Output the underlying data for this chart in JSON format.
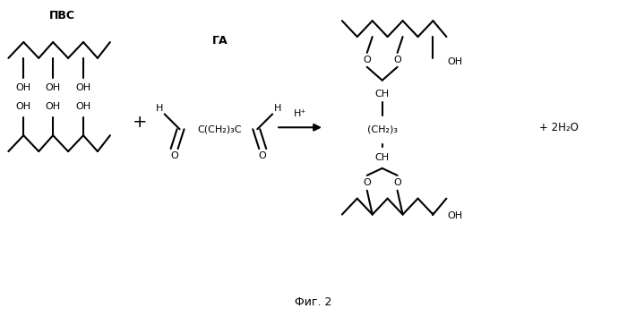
{
  "title": "",
  "fig_label": "Фиг. 2",
  "background": "#ffffff",
  "line_color": "#000000",
  "text_color": "#000000",
  "figsize": [
    7.0,
    3.54
  ],
  "dpi": 100,
  "pvs_label": "ПВС",
  "ga_label": "ГА",
  "h_plus": "H⁺",
  "product_water": "+ 2H₂O",
  "plus": "+",
  "ch_label": "CH",
  "ch2_3_label": "(CH₂)₃",
  "ga_formula": "C(CH₂)₃C",
  "fig2_label": "Фиг. 2"
}
